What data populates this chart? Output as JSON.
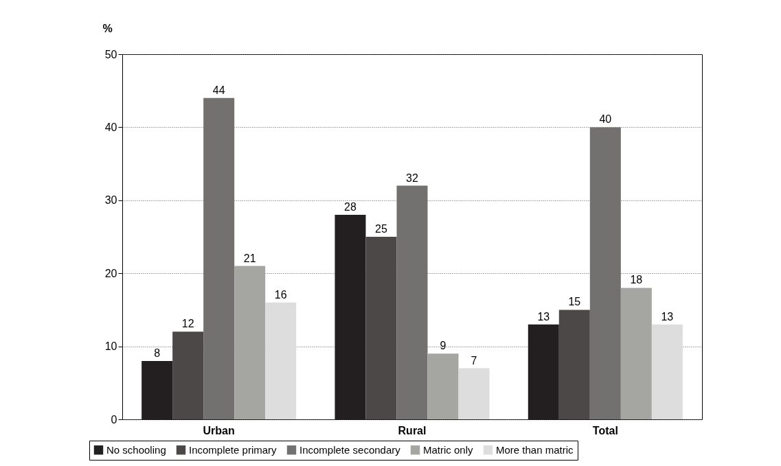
{
  "chart_data": {
    "type": "bar",
    "ylabel": "%",
    "categories": [
      "Urban",
      "Rural",
      "Total"
    ],
    "series": [
      {
        "name": "No schooling",
        "color": "#231f20",
        "values": [
          8,
          28,
          13
        ]
      },
      {
        "name": "Incomplete primary",
        "color": "#4d4848",
        "values": [
          12,
          25,
          15
        ]
      },
      {
        "name": "Incomplete secondary",
        "color": "#737170",
        "values": [
          44,
          32,
          40
        ]
      },
      {
        "name": "Matric only",
        "color": "#a5a5a1",
        "values": [
          21,
          9,
          18
        ]
      },
      {
        "name": "More than matric",
        "color": "#dddddd",
        "values": [
          16,
          7,
          13
        ]
      }
    ],
    "ylim": [
      0,
      50
    ],
    "yticks": [
      0,
      10,
      20,
      30,
      40,
      50
    ],
    "grid": "y",
    "legend": "bottom",
    "data_labels": true
  }
}
